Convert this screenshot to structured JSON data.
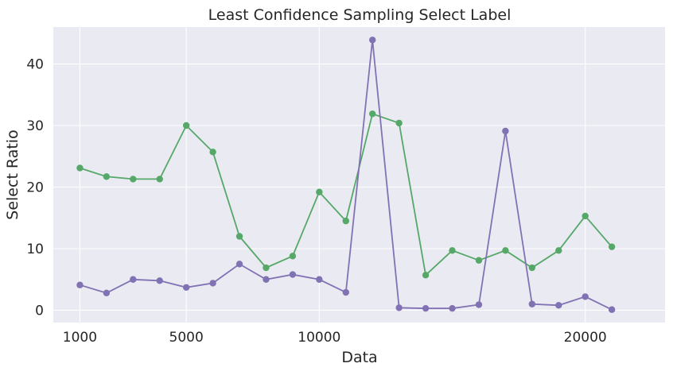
{
  "chart_data": {
    "type": "line",
    "title": "Least Confidence Sampling Select Label",
    "xlabel": "Data",
    "ylabel": "Select Ratio",
    "xlim": [
      0,
      23000
    ],
    "ylim": [
      -2,
      46
    ],
    "xticks": [
      1000,
      5000,
      10000,
      20000
    ],
    "yticks": [
      0,
      10,
      20,
      30,
      40
    ],
    "grid": true,
    "background": "#eaeaf2",
    "series": [
      {
        "color": "#55a868",
        "x": [
          1000,
          2000,
          3000,
          4000,
          5000,
          6000,
          7000,
          8000,
          9000,
          10000,
          11000,
          12000,
          13000,
          14000,
          15000,
          16000,
          17000,
          18000,
          19000,
          20000,
          21000
        ],
        "values": [
          23.1,
          21.7,
          21.3,
          21.3,
          30.0,
          25.7,
          12.0,
          6.9,
          8.8,
          19.2,
          14.5,
          31.9,
          30.4,
          5.7,
          9.7,
          8.1,
          9.7,
          6.9,
          9.7,
          15.3,
          10.3
        ]
      },
      {
        "color": "#8172b3",
        "x": [
          1000,
          2000,
          3000,
          4000,
          5000,
          6000,
          7000,
          8000,
          9000,
          10000,
          11000,
          12000,
          13000,
          14000,
          15000,
          16000,
          17000,
          18000,
          19000,
          20000,
          21000
        ],
        "values": [
          4.1,
          2.8,
          5.0,
          4.8,
          3.7,
          4.4,
          7.5,
          5.0,
          5.8,
          5.0,
          2.9,
          43.9,
          0.4,
          0.3,
          0.3,
          0.9,
          29.1,
          1.0,
          0.8,
          2.2,
          0.1
        ]
      }
    ]
  }
}
